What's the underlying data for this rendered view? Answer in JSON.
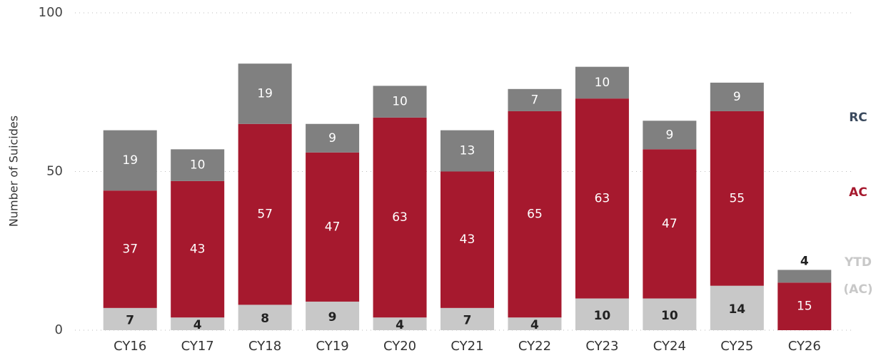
{
  "chart_data": {
    "type": "stacked_bar",
    "ylabel": "Number of Suicides",
    "categories": [
      "CY16",
      "CY17",
      "CY18",
      "CY19",
      "CY20",
      "CY21",
      "CY22",
      "CY23",
      "CY24",
      "CY25",
      "CY26"
    ],
    "series": [
      {
        "name": "YTD (AC)",
        "color": "#c8c8c8",
        "label_color": "#c8c8c8",
        "value_color": "#222222",
        "values": [
          7,
          4,
          8,
          9,
          4,
          7,
          4,
          10,
          10,
          14,
          null
        ]
      },
      {
        "name": "AC",
        "color": "#a6192e",
        "label_color": "#a6192e",
        "value_color": "#ffffff",
        "values": [
          37,
          43,
          57,
          47,
          63,
          43,
          65,
          63,
          47,
          55,
          15
        ]
      },
      {
        "name": "RC",
        "color": "#808080",
        "label_color": "#3b4a5e",
        "value_color": "#ffffff",
        "values": [
          19,
          10,
          19,
          9,
          10,
          13,
          7,
          10,
          9,
          9,
          4
        ]
      }
    ],
    "ylim": [
      0,
      100
    ],
    "yticks": [
      0,
      50,
      100
    ],
    "grid": true
  }
}
